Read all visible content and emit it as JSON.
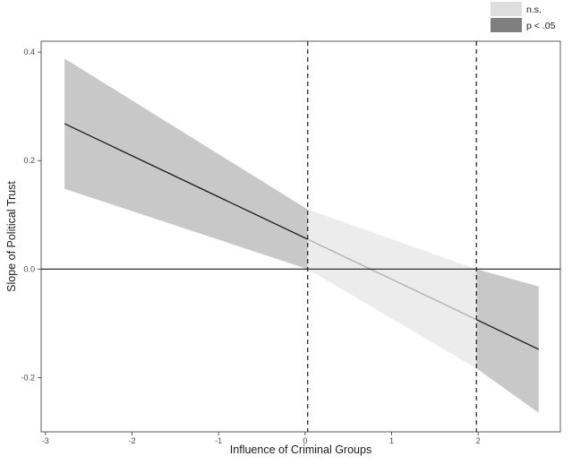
{
  "chart_data": {
    "type": "line",
    "xlabel": "Influence of Criminal Groups",
    "ylabel": "Slope of Political Trust",
    "xlim": [
      -3.05,
      2.95
    ],
    "ylim": [
      -0.3,
      0.42
    ],
    "x_ticks": [
      -3,
      -2,
      -1,
      0,
      1,
      2
    ],
    "y_ticks": [
      -0.2,
      0.0,
      0.2,
      0.4
    ],
    "y_tick_labels": [
      "-0.2",
      "0.0",
      "0.2",
      "0.4"
    ],
    "reference_hline": 0.0,
    "reference_vlines": [
      0.03,
      1.98
    ],
    "legend": {
      "position": "top-right",
      "entries": [
        {
          "label": "n.s.",
          "color": "#dedede"
        },
        {
          "label": "p < .05",
          "color": "#7f7f7f"
        }
      ]
    },
    "series": [
      {
        "legend": "p < .05",
        "x": [
          -2.78,
          0.03
        ],
        "y": [
          0.268,
          0.055
        ],
        "lower": [
          0.148,
          0.0
        ],
        "upper": [
          0.388,
          0.11
        ]
      },
      {
        "legend": "n.s.",
        "x": [
          0.03,
          1.98
        ],
        "y": [
          0.055,
          -0.093
        ],
        "lower": [
          0.0,
          -0.183
        ],
        "upper": [
          0.11,
          0.0
        ]
      },
      {
        "legend": "p < .05",
        "x": [
          1.98,
          2.7
        ],
        "y": [
          -0.093,
          -0.148
        ],
        "lower": [
          -0.183,
          -0.265
        ],
        "upper": [
          0.0,
          -0.032
        ]
      }
    ]
  },
  "colors": {
    "band_significant": "#c8c8c8",
    "band_ns": "#ececec",
    "line_significant": "#1a1a1a",
    "line_ns": "#b0b0b0"
  }
}
